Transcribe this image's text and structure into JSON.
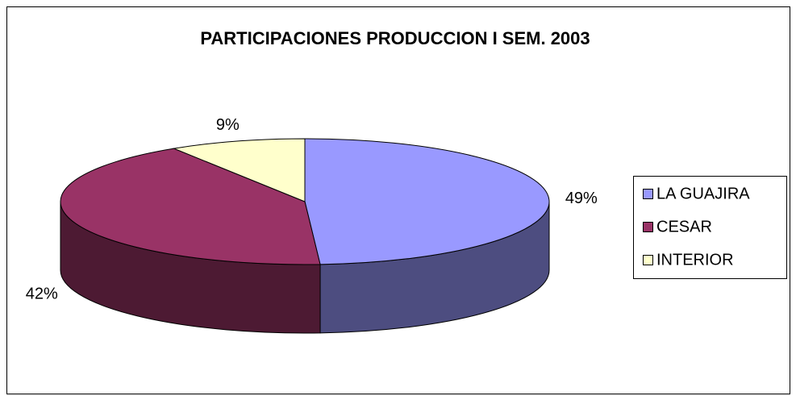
{
  "chart_data": {
    "type": "pie3d",
    "title": "PARTICIPACIONES PRODUCCION I SEM. 2003",
    "categories": [
      "LA GUAJIRA",
      "CESAR",
      "INTERIOR"
    ],
    "values": [
      49,
      42,
      9
    ],
    "value_labels": [
      "49%",
      "42%",
      "9%"
    ],
    "colors": [
      "#9999ff",
      "#993366",
      "#ffffcc"
    ],
    "legend": "right"
  }
}
